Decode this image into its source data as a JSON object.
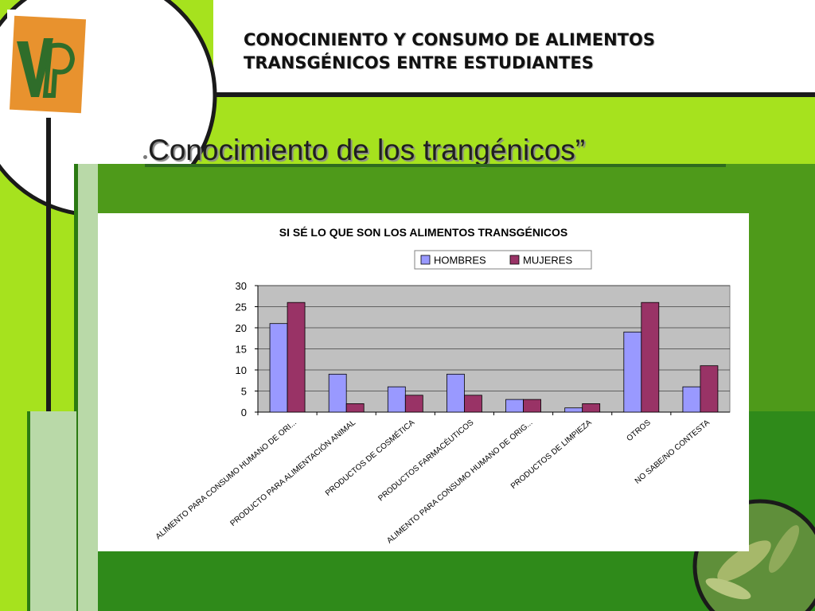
{
  "slide": {
    "title_line1": "CONOCINIENTO Y CONSUMO DE ALIMENTOS",
    "title_line2": "TRANSGÉNICOS ENTRE ESTUDIANTES",
    "subtitle": "Conocimiento de los trangénicos”"
  },
  "logo": {
    "letters": "VP",
    "color": "#e8922e"
  },
  "theme": {
    "lime": "#a6e21e",
    "green_dark": "#2b7a12",
    "green_mid": "#4e9a1a",
    "green_light": "#7cc02a"
  },
  "chart_data": {
    "type": "bar",
    "title": "SI SÉ LO QUE SON LOS ALIMENTOS TRANSGÉNICOS",
    "categories": [
      "ALIMENTO PARA CONSUMO HUMANO DE ORI...",
      "PRODUCTO PARA ALIMENTACIÓN ANIMAL",
      "PRODUCTOS DE COSMÉTICA",
      "PRODUCTOS FARMACÉUTICOS",
      "ALIMENTO PARA CONSUMO HUMANO DE ORIG...",
      "PRODUCTOS DE LIMPIEZA",
      "OTROS",
      "NO SABE/NO CONTESTA"
    ],
    "series": [
      {
        "name": "HOMBRES",
        "values": [
          21,
          9,
          6,
          9,
          3,
          1,
          19,
          6
        ],
        "color": "#9999ff"
      },
      {
        "name": "MUJERES",
        "values": [
          26,
          2,
          4,
          4,
          3,
          2,
          26,
          11
        ],
        "color": "#993366"
      }
    ],
    "ylim": [
      0,
      30
    ],
    "yticks": [
      0,
      5,
      10,
      15,
      20,
      25,
      30
    ],
    "grid": true,
    "legend_position": "top-right",
    "plot_background": "#c0c0c0"
  }
}
